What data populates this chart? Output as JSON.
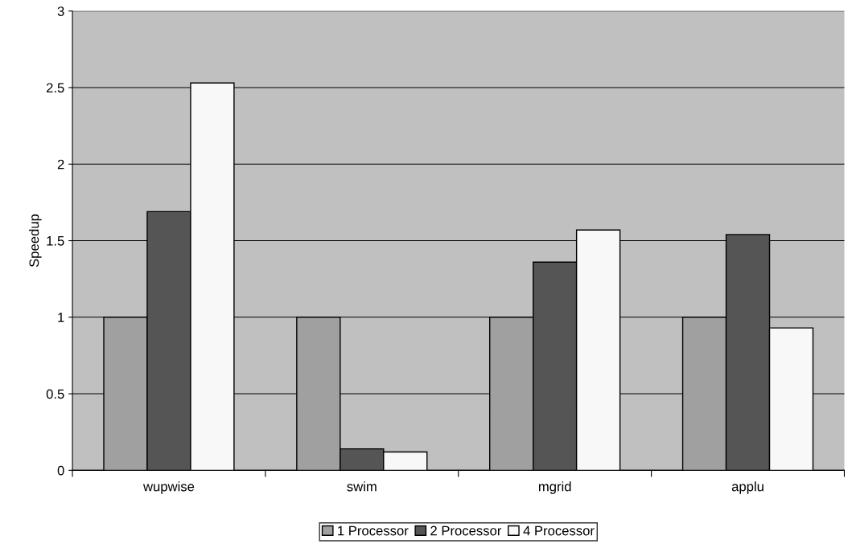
{
  "chart_data": {
    "type": "bar",
    "ylabel": "Speedup",
    "categories": [
      "wupwise",
      "swim",
      "mgrid",
      "applu"
    ],
    "series": [
      {
        "name": "1 Processor",
        "color": "#a0a0a0",
        "values": [
          1,
          1,
          1,
          1
        ]
      },
      {
        "name": "2 Processor",
        "color": "#555555",
        "values": [
          1.69,
          0.14,
          1.36,
          1.54
        ]
      },
      {
        "name": "4 Processor",
        "color": "#f8f8f8",
        "values": [
          2.53,
          0.12,
          1.57,
          0.93
        ]
      }
    ],
    "ylim": [
      0,
      3
    ],
    "yticks": [
      0,
      {
        "value": 0.5,
        "label": "0.5"
      },
      1,
      {
        "value": 1.5,
        "label": "1.5"
      },
      2,
      {
        "value": 2.5,
        "label": "2.5"
      },
      3
    ],
    "grid": "y",
    "legend": "bottom"
  }
}
